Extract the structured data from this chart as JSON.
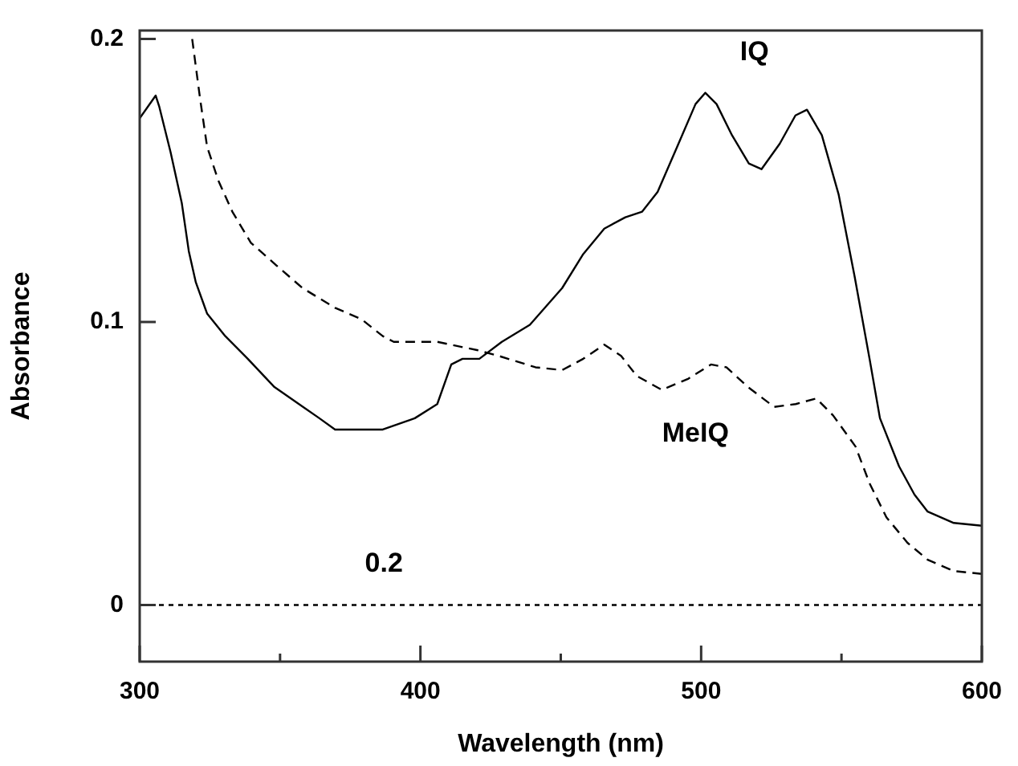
{
  "chart_data": {
    "type": "line",
    "xlabel": "Wavelength (nm)",
    "ylabel": "Absorbance",
    "xlim": [
      300,
      600
    ],
    "xticks": [
      300,
      {
        "value": 350,
        "label": null
      },
      400,
      {
        "value": 450,
        "label": null
      },
      500,
      {
        "value": 550,
        "label": null
      },
      600
    ],
    "ylim": [
      -0.02,
      0.203
    ],
    "yticks": [
      0,
      0.1,
      0.2
    ],
    "grid": false,
    "legend": false,
    "marker": "none",
    "series": [
      {
        "name": "IQ",
        "color": "#000000",
        "line_style": "solid",
        "x": [
          300,
          305.7,
          307,
          311,
          315,
          317.5,
          320,
          324,
          330.5,
          338.5,
          348,
          364,
          369.6,
          386.6,
          398,
          406,
          411,
          415,
          421,
          429,
          439,
          450.5,
          458,
          465.5,
          473,
          479,
          484.5,
          491.5,
          498,
          501.5,
          505.5,
          511,
          517,
          521.5,
          528,
          533.6,
          537.7,
          543,
          549,
          554.7,
          560,
          563.7,
          570.5,
          576,
          580.7,
          590,
          600
        ],
        "values": [
          0.172,
          0.18,
          0.176,
          0.16,
          0.142,
          0.125,
          0.114,
          0.103,
          0.095,
          0.087,
          0.077,
          0.066,
          0.062,
          0.062,
          0.066,
          0.071,
          0.085,
          0.087,
          0.087,
          0.093,
          0.099,
          0.112,
          0.124,
          0.133,
          0.137,
          0.139,
          0.146,
          0.162,
          0.177,
          0.181,
          0.177,
          0.166,
          0.156,
          0.154,
          0.163,
          0.173,
          0.175,
          0.166,
          0.145,
          0.116,
          0.087,
          0.066,
          0.049,
          0.039,
          0.033,
          0.029,
          0.028
        ]
      },
      {
        "name": "MeIQ",
        "color": "#000000",
        "line_style": "dashed",
        "x": [
          318.7,
          321.5,
          324,
          328,
          333,
          339.6,
          348.7,
          358,
          369.6,
          379,
          386.6,
          390.5,
          406,
          420.5,
          428,
          441,
          450.5,
          458,
          465.5,
          471.5,
          477,
          486,
          495.5,
          503.5,
          509,
          516.7,
          526,
          533.7,
          541,
          547,
          555,
          560,
          566,
          573.5,
          580.7,
          590,
          600
        ],
        "values": [
          0.2,
          0.179,
          0.162,
          0.15,
          0.139,
          0.128,
          0.12,
          0.112,
          0.105,
          0.101,
          0.095,
          0.093,
          0.093,
          0.09,
          0.088,
          0.084,
          0.083,
          0.087,
          0.092,
          0.088,
          0.081,
          0.076,
          0.08,
          0.085,
          0.084,
          0.077,
          0.07,
          0.071,
          0.073,
          0.067,
          0.056,
          0.043,
          0.031,
          0.022,
          0.016,
          0.012,
          0.011
        ]
      }
    ],
    "ref_lines": [
      {
        "axis": "y",
        "value": 0,
        "color": "#000000",
        "line_style": "dotted"
      }
    ],
    "annotations": [
      "0.2"
    ]
  }
}
